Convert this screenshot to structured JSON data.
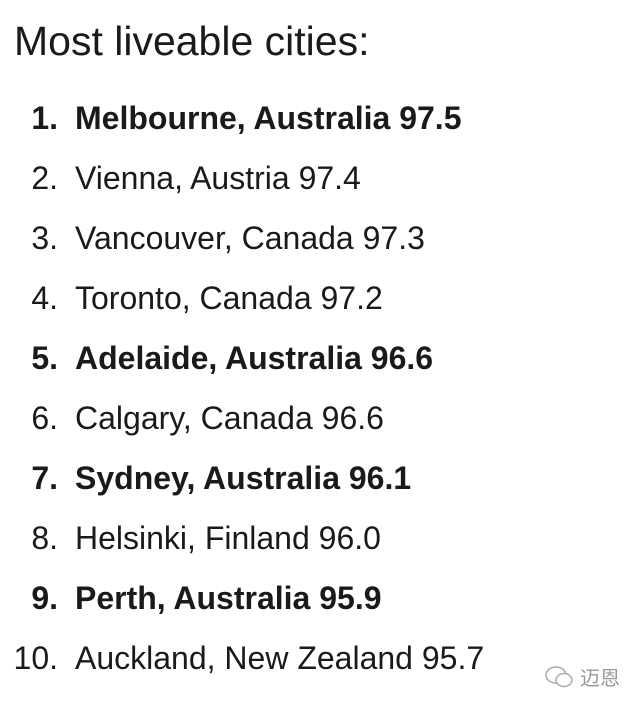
{
  "title": "Most liveable cities:",
  "items": [
    {
      "rank": "1.",
      "city": "Melbourne, Australia",
      "score": "97.5",
      "bold": true
    },
    {
      "rank": "2.",
      "city": "Vienna, Austria",
      "score": "97.4",
      "bold": false
    },
    {
      "rank": "3.",
      "city": "Vancouver, Canada",
      "score": "97.3",
      "bold": false
    },
    {
      "rank": "4.",
      "city": "Toronto, Canada",
      "score": "97.2",
      "bold": false
    },
    {
      "rank": "5.",
      "city": "Adelaide, Australia",
      "score": "96.6",
      "bold": true
    },
    {
      "rank": "6.",
      "city": "Calgary, Canada",
      "score": "96.6",
      "bold": false
    },
    {
      "rank": "7.",
      "city": "Sydney, Australia",
      "score": "96.1",
      "bold": true
    },
    {
      "rank": "8.",
      "city": "Helsinki, Finland",
      "score": "96.0",
      "bold": false
    },
    {
      "rank": "9.",
      "city": "Perth, Australia",
      "score": "95.9",
      "bold": true
    },
    {
      "rank": "10.",
      "city": "Auckland, New Zealand",
      "score": "95.7",
      "bold": false
    }
  ],
  "watermark": "迈恩"
}
